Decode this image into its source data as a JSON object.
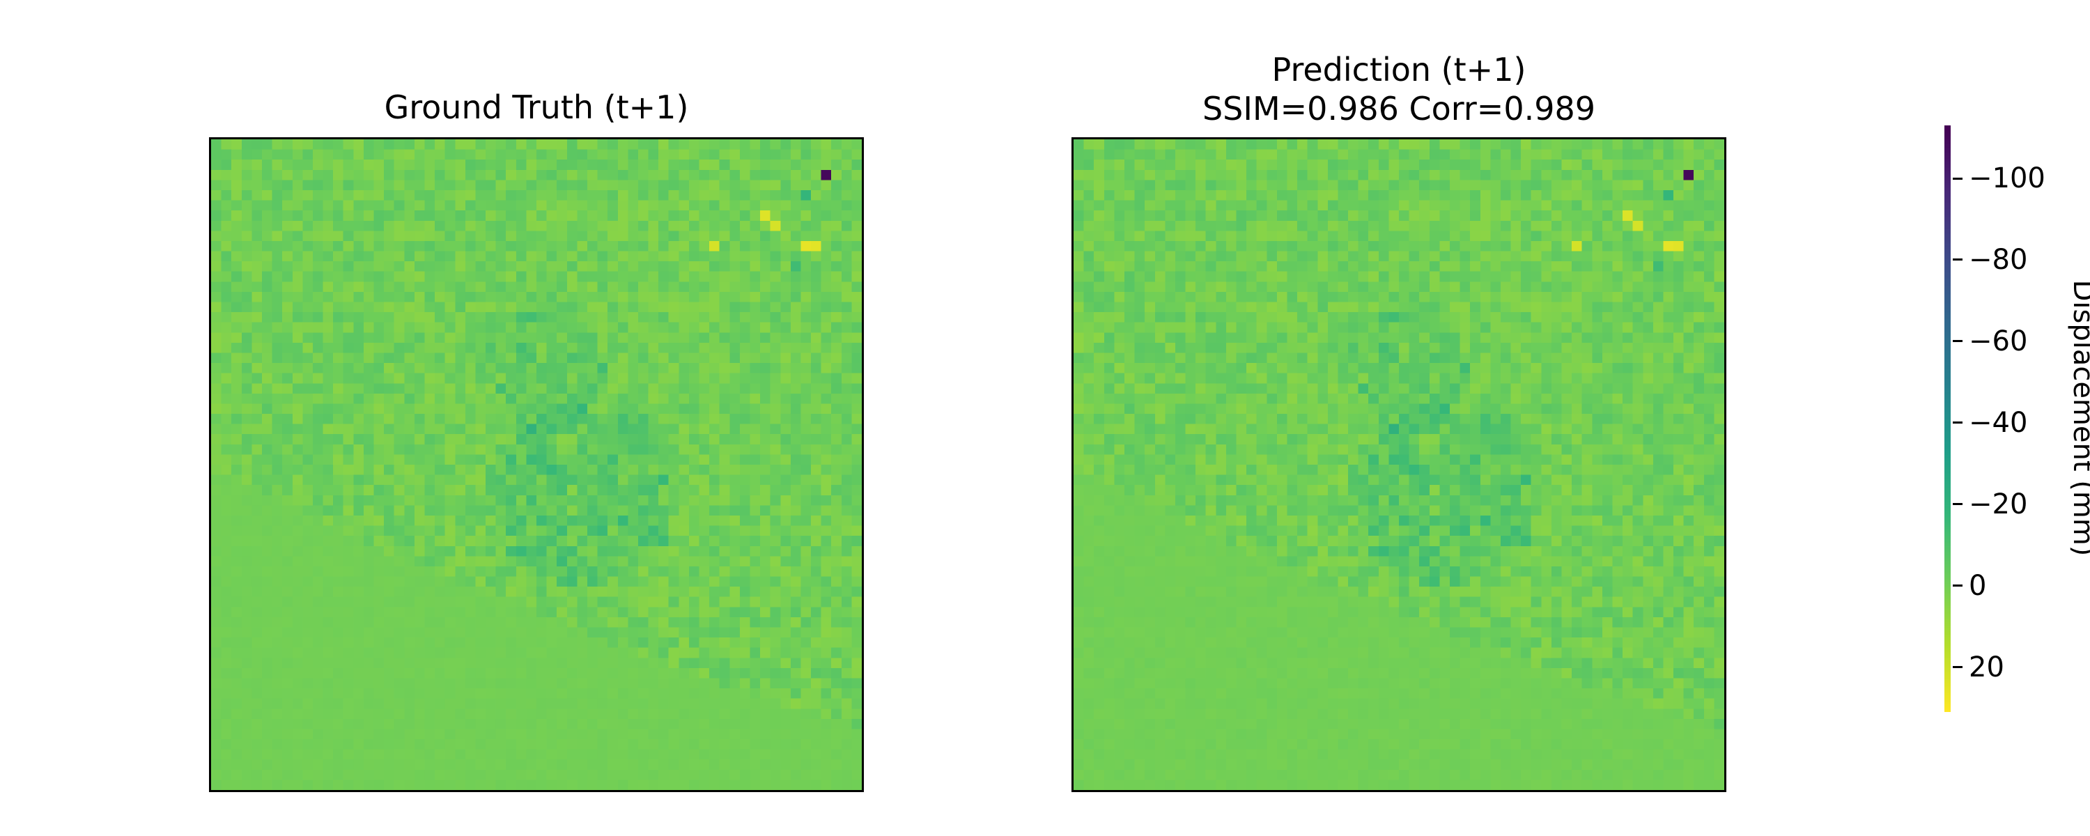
{
  "chart_data": {
    "type": "heatmap",
    "panels": [
      {
        "title_lines": [
          "Ground Truth (t+1)"
        ]
      },
      {
        "title_lines": [
          "Prediction (t+1)",
          "SSIM=0.986  Corr=0.989"
        ]
      }
    ],
    "colormap": "viridis_r",
    "colorbar": {
      "label": "Displacement (mm)",
      "range": [
        -113,
        31
      ],
      "orientation": "inverted",
      "ticks": [
        -100,
        -80,
        -60,
        -40,
        -20,
        0,
        20
      ],
      "tick_labels": [
        "−100",
        "−80",
        "−60",
        "−40",
        "−20",
        "0",
        "20"
      ]
    },
    "grid_size": [
      64,
      64
    ],
    "background_value": 0,
    "hotspots": [
      {
        "row": 3,
        "col": 60,
        "value": -110
      },
      {
        "row": 7,
        "col": 54,
        "value": 24
      },
      {
        "row": 8,
        "col": 55,
        "value": 22
      },
      {
        "row": 10,
        "col": 58,
        "value": 26
      },
      {
        "row": 10,
        "col": 59,
        "value": 25
      },
      {
        "row": 10,
        "col": 49,
        "value": 22
      },
      {
        "row": 12,
        "col": 57,
        "value": -14
      },
      {
        "row": 5,
        "col": 58,
        "value": -18
      }
    ]
  }
}
